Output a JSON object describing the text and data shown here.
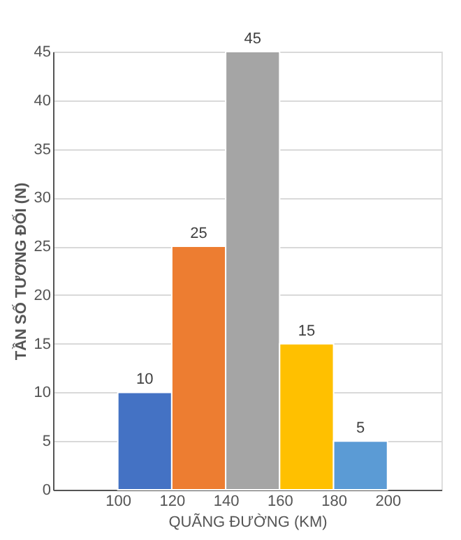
{
  "chart_data": {
    "type": "histogram",
    "xlabel": "QUÃNG ĐƯỜNG (KM)",
    "ylabel": "TẦN SỐ TƯƠNG ĐỐI (N)",
    "bins": [
      100,
      120,
      140,
      160,
      180,
      200
    ],
    "values": [
      10,
      25,
      45,
      15,
      5
    ],
    "colors": [
      "#4472c4",
      "#ed7d31",
      "#a5a5a5",
      "#ffc000",
      "#5b9bd5"
    ],
    "xlim": [
      76,
      220
    ],
    "xticks": [
      100,
      120,
      140,
      160,
      180,
      200
    ],
    "ylim": [
      0,
      45
    ],
    "yticks": [
      0,
      5,
      10,
      15,
      20,
      25,
      30,
      35,
      40,
      45
    ],
    "grid": "y",
    "data_labels": true
  }
}
